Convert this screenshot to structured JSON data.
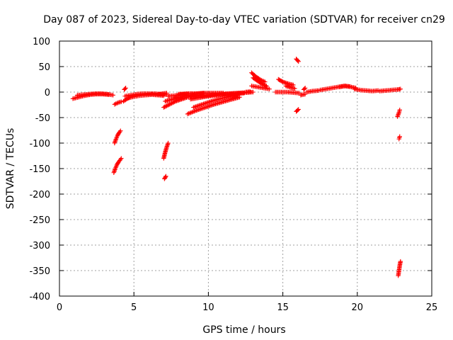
{
  "chart_data": {
    "type": "scatter",
    "title": "Day 087 of 2023, Sidereal Day-to-day VTEC variation (SDTVAR) for receiver cn29",
    "xlabel": "GPS time / hours",
    "ylabel": "SDTVAR / TECUs",
    "xlim": [
      0,
      25
    ],
    "ylim": [
      -400,
      100
    ],
    "xticks": [
      "0",
      "5",
      "10",
      "15",
      "20",
      "25"
    ],
    "yticks": [
      "100",
      "50",
      "0",
      "-50",
      "-100",
      "-150",
      "-200",
      "-250",
      "-300",
      "-350",
      "-400"
    ],
    "grid": true,
    "legend": "none",
    "marker": "plus",
    "color": "#ff0000",
    "series": [
      {
        "name": "s1",
        "x": [
          0.9,
          1.3,
          1.7,
          2.1,
          2.5,
          2.9,
          3.3
        ],
        "y": [
          -13,
          -10,
          -7,
          -5,
          -4,
          -4,
          -5
        ]
      },
      {
        "name": "s2",
        "x": [
          1.2,
          1.6,
          2.0,
          2.4,
          2.8,
          3.2,
          3.6
        ],
        "y": [
          -6,
          -5,
          -4,
          -3,
          -3,
          -4,
          -6
        ]
      },
      {
        "name": "s3",
        "x": [
          3.7,
          3.85,
          4.0,
          4.15
        ],
        "y": [
          -24,
          -22,
          -20,
          -19
        ]
      },
      {
        "name": "s4",
        "x": [
          3.7,
          3.8,
          3.9,
          4.0,
          4.1
        ],
        "y": [
          -100,
          -92,
          -85,
          -80,
          -76
        ]
      },
      {
        "name": "s5",
        "x": [
          3.65,
          3.75,
          3.85,
          3.95,
          4.05,
          4.15
        ],
        "y": [
          -158,
          -150,
          -143,
          -138,
          -134,
          -130
        ]
      },
      {
        "name": "s6",
        "x": [
          4.3,
          4.5,
          4.7
        ],
        "y": [
          -18,
          -14,
          -10
        ]
      },
      {
        "name": "s7",
        "x": [
          4.35,
          4.45
        ],
        "y": [
          5,
          8
        ]
      },
      {
        "name": "s8",
        "x": [
          4.4,
          4.8,
          5.2,
          5.6,
          6.0,
          6.4,
          6.8,
          7.2
        ],
        "y": [
          -8,
          -6,
          -4,
          -3,
          -3,
          -3,
          -4,
          -5
        ]
      },
      {
        "name": "s9",
        "x": [
          4.6,
          5.0,
          5.4,
          5.8,
          6.2,
          6.6,
          7.0
        ],
        "y": [
          -12,
          -9,
          -7,
          -6,
          -5,
          -6,
          -7
        ]
      },
      {
        "name": "s10",
        "x": [
          6.6,
          6.9,
          7.2
        ],
        "y": [
          -5,
          -3,
          -2
        ]
      },
      {
        "name": "s11",
        "x": [
          7.0,
          7.1,
          7.2,
          7.3
        ],
        "y": [
          -130,
          -118,
          -108,
          -100
        ]
      },
      {
        "name": "s12",
        "x": [
          7.05,
          7.15
        ],
        "y": [
          -170,
          -165
        ]
      },
      {
        "name": "s13",
        "x": [
          7.0,
          7.4,
          7.8,
          8.2,
          8.6,
          9.0,
          9.5
        ],
        "y": [
          -30,
          -24,
          -18,
          -14,
          -10,
          -8,
          -6
        ]
      },
      {
        "name": "s14",
        "x": [
          7.1,
          7.6,
          8.1,
          8.6,
          9.1
        ],
        "y": [
          -18,
          -14,
          -10,
          -7,
          -5
        ]
      },
      {
        "name": "s15",
        "x": [
          7.3,
          7.7,
          8.1,
          8.5,
          8.9,
          9.3,
          9.7
        ],
        "y": [
          -8,
          -7,
          -5,
          -4,
          -3,
          -3,
          -2
        ]
      },
      {
        "name": "s16",
        "x": [
          8.0,
          8.6,
          9.2,
          9.8,
          10.4,
          11.0
        ],
        "y": [
          -4,
          -3,
          -3,
          -2,
          -2,
          -2
        ]
      },
      {
        "name": "s17",
        "x": [
          8.6,
          9.2,
          9.8,
          10.4,
          11.0,
          11.6,
          12.1
        ],
        "y": [
          -43,
          -36,
          -30,
          -24,
          -19,
          -14,
          -10
        ]
      },
      {
        "name": "s18",
        "x": [
          9.0,
          9.6,
          10.2,
          10.8,
          11.4,
          12.0
        ],
        "y": [
          -30,
          -24,
          -18,
          -13,
          -9,
          -6
        ]
      },
      {
        "name": "s19",
        "x": [
          8.8,
          9.4,
          10.0,
          10.6,
          11.2,
          11.8,
          12.4
        ],
        "y": [
          -14,
          -11,
          -8,
          -6,
          -4,
          -3,
          -2
        ]
      },
      {
        "name": "s20",
        "x": [
          9.5,
          10.1,
          10.7,
          11.3,
          11.9,
          12.5,
          13.0
        ],
        "y": [
          -8,
          -6,
          -4,
          -3,
          -2,
          -1,
          0
        ]
      },
      {
        "name": "s21",
        "x": [
          12.5,
          12.8
        ],
        "y": [
          0,
          1
        ]
      },
      {
        "name": "s22",
        "x": [
          12.9,
          13.2,
          13.5,
          13.8
        ],
        "y": [
          38,
          30,
          24,
          20
        ]
      },
      {
        "name": "s23",
        "x": [
          13.0,
          13.3,
          13.6,
          13.9
        ],
        "y": [
          28,
          22,
          16,
          12
        ]
      },
      {
        "name": "s24",
        "x": [
          12.9,
          13.3,
          13.7,
          14.1
        ],
        "y": [
          12,
          10,
          8,
          6
        ]
      },
      {
        "name": "s25",
        "x": [
          14.5,
          14.9,
          15.3,
          15.7,
          16.1
        ],
        "y": [
          0,
          0,
          0,
          -1,
          -2
        ]
      },
      {
        "name": "s26",
        "x": [
          14.7,
          15.0,
          15.4,
          15.7
        ],
        "y": [
          25,
          20,
          16,
          14
        ]
      },
      {
        "name": "s27",
        "x": [
          15.2,
          15.5,
          15.8
        ],
        "y": [
          12,
          9,
          7
        ]
      },
      {
        "name": "s28",
        "x": [
          15.9,
          16.05
        ],
        "y": [
          65,
          60
        ]
      },
      {
        "name": "s29",
        "x": [
          15.9,
          16.05
        ],
        "y": [
          -38,
          -34
        ]
      },
      {
        "name": "s30",
        "x": [
          16.2,
          16.5
        ],
        "y": [
          -6,
          -4
        ]
      },
      {
        "name": "s31",
        "x": [
          16.4,
          16.5
        ],
        "y": [
          5,
          8
        ]
      },
      {
        "name": "s32",
        "x": [
          16.6,
          17.0,
          17.4
        ],
        "y": [
          0,
          2,
          3
        ]
      },
      {
        "name": "s33",
        "x": [
          17.5,
          17.9,
          18.3,
          18.7,
          19.1,
          19.5
        ],
        "y": [
          4,
          6,
          8,
          10,
          12,
          11
        ]
      },
      {
        "name": "s34",
        "x": [
          18.8,
          19.2,
          19.6,
          19.9
        ],
        "y": [
          10,
          12,
          10,
          8
        ]
      },
      {
        "name": "s35",
        "x": [
          19.8,
          20.2,
          20.6,
          21.0,
          21.4
        ],
        "y": [
          6,
          4,
          3,
          2,
          3
        ]
      },
      {
        "name": "s36",
        "x": [
          21.5,
          21.9,
          22.3,
          22.7,
          22.9
        ],
        "y": [
          2,
          3,
          4,
          5,
          6
        ]
      },
      {
        "name": "s37",
        "x": [
          22.7,
          22.8,
          22.85
        ],
        "y": [
          -48,
          -40,
          -35
        ]
      },
      {
        "name": "s38",
        "x": [
          22.8,
          22.85
        ],
        "y": [
          -92,
          -87
        ]
      },
      {
        "name": "s39",
        "x": [
          22.75,
          22.8,
          22.85,
          22.9
        ],
        "y": [
          -360,
          -350,
          -340,
          -332
        ]
      }
    ]
  }
}
